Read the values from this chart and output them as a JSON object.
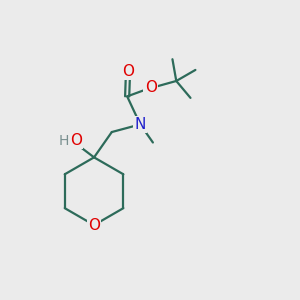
{
  "background_color": "#ebebeb",
  "bond_color": "#2d6b5a",
  "oxygen_color": "#e00000",
  "nitrogen_color": "#2020cc",
  "hydrogen_color": "#7a9090",
  "line_width": 1.6,
  "figsize": [
    3.0,
    3.0
  ],
  "dpi": 100,
  "xlim": [
    0,
    10
  ],
  "ylim": [
    0,
    10
  ]
}
